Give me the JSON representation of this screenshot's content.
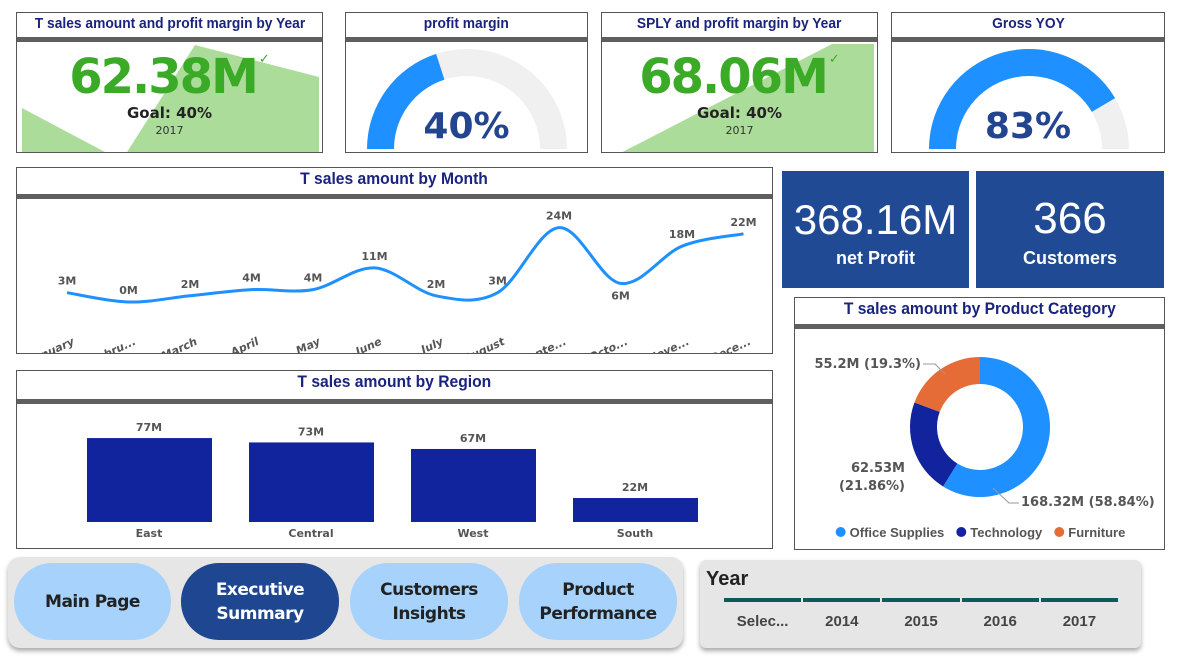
{
  "kpi_cards": [
    {
      "title": "T sales amount and profit margin by Year",
      "value": "62.38M",
      "goal": "Goal: 40%",
      "year": "2017"
    },
    {
      "title": "profit margin",
      "value": "40%",
      "gauge_fraction": 0.4
    },
    {
      "title": "SPLY and profit margin by Year",
      "value": "68.06M",
      "goal": "Goal: 40%",
      "year": "2017"
    },
    {
      "title": "Gross YOY",
      "value": "83%",
      "gauge_fraction": 0.83
    }
  ],
  "colors": {
    "accent": "#1e90ff",
    "kpi_green": "#3aaa27",
    "area_green": "#acdc9a",
    "navy": "#1a237e",
    "bar": "#12239e",
    "kpi_box": "#214a94",
    "office": "#1e90ff",
    "tech": "#12239e",
    "furniture": "#e66c37"
  },
  "summary": {
    "net_profit": {
      "value": "368.16M",
      "label": "net Profit"
    },
    "customers": {
      "value": "366",
      "label": "Customers"
    }
  },
  "chart_data": [
    {
      "type": "line",
      "title": "T sales amount by Month",
      "categories": [
        "January",
        "Febru...",
        "March",
        "April",
        "May",
        "June",
        "July",
        "August",
        "Septe...",
        "Octo...",
        "Nove...",
        "Dece..."
      ],
      "values": [
        3,
        0,
        2,
        4,
        4,
        11,
        2,
        3,
        24,
        6,
        18,
        22
      ],
      "labels": [
        "3M",
        "0M",
        "2M",
        "4M",
        "4M",
        "11M",
        "2M",
        "3M",
        "24M",
        "6M",
        "18M",
        "22M"
      ],
      "unit": "M"
    },
    {
      "type": "bar",
      "title": "T sales amount by Region",
      "categories": [
        "East",
        "Central",
        "West",
        "South"
      ],
      "values": [
        77,
        73,
        67,
        22
      ],
      "labels": [
        "77M",
        "73M",
        "67M",
        "22M"
      ],
      "unit": "M"
    },
    {
      "type": "pie",
      "title": "T sales amount by Product Category",
      "categories": [
        "Office Supplies",
        "Technology",
        "Furniture"
      ],
      "values": [
        168.32,
        62.53,
        55.2
      ],
      "labels": [
        "168.32M (58.84%)",
        "62.53M (21.86%)",
        "55.2M (19.3%)"
      ],
      "legend": "bottom"
    }
  ],
  "nav": {
    "buttons": [
      "Main Page",
      "Executive Summary",
      "Customers Insights",
      "Product Performance"
    ],
    "active": 1
  },
  "slicer": {
    "title": "Year",
    "options": [
      "Selec...",
      "2014",
      "2015",
      "2016",
      "2017"
    ]
  }
}
